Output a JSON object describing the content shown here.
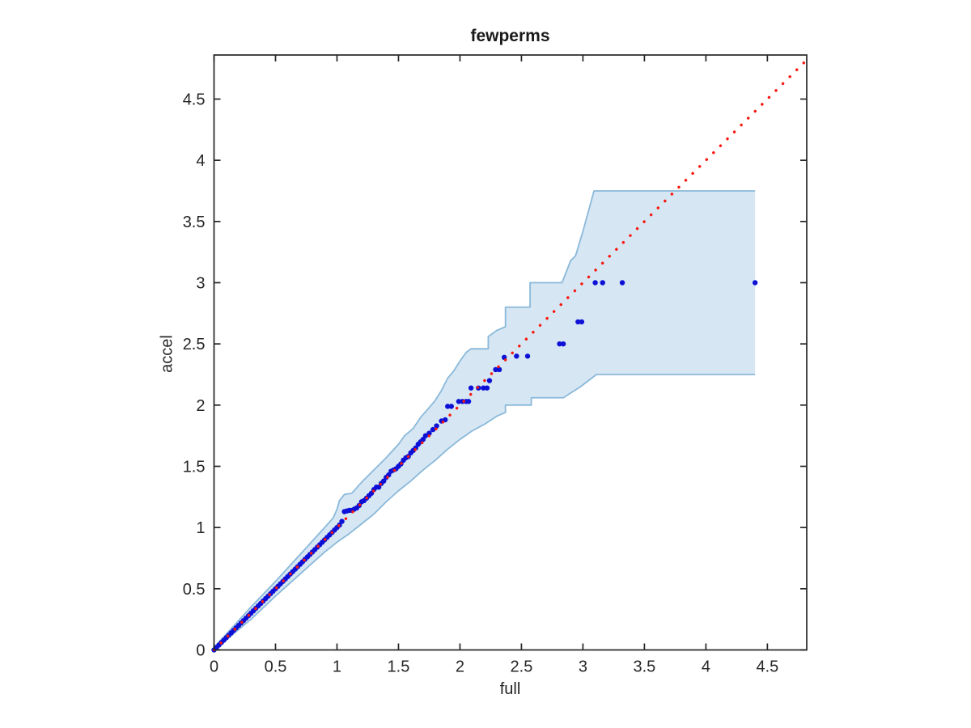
{
  "figure": {
    "title": "fewperms"
  },
  "chart_data": {
    "type": "scatter",
    "title": "fewperms",
    "xlabel": "full",
    "ylabel": "accel",
    "xlim": [
      0,
      4.82
    ],
    "ylim": [
      0,
      4.86
    ],
    "xticks": [
      0,
      0.5,
      1,
      1.5,
      2,
      2.5,
      3,
      3.5,
      4,
      4.5
    ],
    "xtick_labels": [
      "0",
      "0.5",
      "1",
      "1.5",
      "2",
      "2.5",
      "3",
      "3.5",
      "4",
      "4.5"
    ],
    "yticks": [
      0,
      0.5,
      1,
      1.5,
      2,
      2.5,
      3,
      3.5,
      4,
      4.5
    ],
    "ytick_labels": [
      "0",
      "0.5",
      "1",
      "1.5",
      "2",
      "2.5",
      "3",
      "3.5",
      "4",
      "4.5"
    ],
    "grid": false,
    "legend": null,
    "colors": {
      "background": "#ffffff",
      "axis": "#262626",
      "band_fill": "#d6e6f3",
      "band_edge": "#8ab9da",
      "marker": "#0d11d6",
      "ref_line": "#f8170e"
    },
    "ref_line": {
      "style": "dotted",
      "from": [
        0,
        0
      ],
      "to": [
        4.82,
        4.82
      ]
    },
    "band": {
      "upper": [
        [
          0,
          0.02
        ],
        [
          0.3,
          0.35
        ],
        [
          0.5,
          0.56
        ],
        [
          0.7,
          0.78
        ],
        [
          0.9,
          1.0
        ],
        [
          0.97,
          1.08
        ],
        [
          1.0,
          1.15
        ],
        [
          1.02,
          1.22
        ],
        [
          1.06,
          1.27
        ],
        [
          1.12,
          1.28
        ],
        [
          1.2,
          1.37
        ],
        [
          1.3,
          1.47
        ],
        [
          1.4,
          1.57
        ],
        [
          1.5,
          1.68
        ],
        [
          1.55,
          1.75
        ],
        [
          1.62,
          1.81
        ],
        [
          1.68,
          1.9
        ],
        [
          1.75,
          1.98
        ],
        [
          1.8,
          2.04
        ],
        [
          1.85,
          2.12
        ],
        [
          1.9,
          2.22
        ],
        [
          1.95,
          2.28
        ],
        [
          2.0,
          2.36
        ],
        [
          2.05,
          2.43
        ],
        [
          2.09,
          2.46
        ],
        [
          2.23,
          2.46
        ],
        [
          2.23,
          2.56
        ],
        [
          2.3,
          2.61
        ],
        [
          2.37,
          2.64
        ],
        [
          2.37,
          2.8
        ],
        [
          2.57,
          2.8
        ],
        [
          2.57,
          3.0
        ],
        [
          2.83,
          3.0
        ],
        [
          2.9,
          3.18
        ],
        [
          2.94,
          3.22
        ],
        [
          3.0,
          3.42
        ],
        [
          3.09,
          3.75
        ],
        [
          4.4,
          3.75
        ]
      ],
      "lower": [
        [
          0,
          0
        ],
        [
          0.3,
          0.25
        ],
        [
          0.5,
          0.44
        ],
        [
          0.7,
          0.62
        ],
        [
          0.9,
          0.8
        ],
        [
          1.0,
          0.88
        ],
        [
          1.1,
          0.95
        ],
        [
          1.2,
          1.03
        ],
        [
          1.3,
          1.11
        ],
        [
          1.4,
          1.21
        ],
        [
          1.5,
          1.3
        ],
        [
          1.6,
          1.38
        ],
        [
          1.7,
          1.47
        ],
        [
          1.8,
          1.55
        ],
        [
          1.9,
          1.64
        ],
        [
          2.0,
          1.72
        ],
        [
          2.1,
          1.79
        ],
        [
          2.21,
          1.85
        ],
        [
          2.3,
          1.91
        ],
        [
          2.37,
          1.94
        ],
        [
          2.37,
          2.0
        ],
        [
          2.58,
          2.0
        ],
        [
          2.58,
          2.06
        ],
        [
          2.84,
          2.06
        ],
        [
          2.98,
          2.15
        ],
        [
          3.11,
          2.25
        ],
        [
          4.4,
          2.25
        ]
      ]
    },
    "marker": {
      "radius": 3.2
    },
    "points": [
      [
        0,
        0
      ],
      [
        0.02,
        0.02
      ],
      [
        0.04,
        0.04
      ],
      [
        0.06,
        0.06
      ],
      [
        0.08,
        0.08
      ],
      [
        0.1,
        0.1
      ],
      [
        0.12,
        0.12
      ],
      [
        0.14,
        0.14
      ],
      [
        0.16,
        0.16
      ],
      [
        0.18,
        0.18
      ],
      [
        0.2,
        0.2
      ],
      [
        0.22,
        0.22
      ],
      [
        0.24,
        0.24
      ],
      [
        0.26,
        0.26
      ],
      [
        0.28,
        0.28
      ],
      [
        0.3,
        0.3
      ],
      [
        0.32,
        0.32
      ],
      [
        0.34,
        0.34
      ],
      [
        0.36,
        0.36
      ],
      [
        0.38,
        0.38
      ],
      [
        0.4,
        0.4
      ],
      [
        0.42,
        0.42
      ],
      [
        0.44,
        0.44
      ],
      [
        0.46,
        0.46
      ],
      [
        0.48,
        0.48
      ],
      [
        0.5,
        0.5
      ],
      [
        0.52,
        0.52
      ],
      [
        0.54,
        0.54
      ],
      [
        0.56,
        0.56
      ],
      [
        0.58,
        0.58
      ],
      [
        0.6,
        0.6
      ],
      [
        0.62,
        0.62
      ],
      [
        0.64,
        0.64
      ],
      [
        0.66,
        0.66
      ],
      [
        0.68,
        0.68
      ],
      [
        0.7,
        0.7
      ],
      [
        0.72,
        0.72
      ],
      [
        0.74,
        0.74
      ],
      [
        0.76,
        0.76
      ],
      [
        0.78,
        0.78
      ],
      [
        0.8,
        0.8
      ],
      [
        0.82,
        0.82
      ],
      [
        0.84,
        0.84
      ],
      [
        0.86,
        0.86
      ],
      [
        0.88,
        0.88
      ],
      [
        0.9,
        0.9
      ],
      [
        0.92,
        0.92
      ],
      [
        0.94,
        0.94
      ],
      [
        0.96,
        0.96
      ],
      [
        0.98,
        0.98
      ],
      [
        1.0,
        1.0
      ],
      [
        1.02,
        1.02
      ],
      [
        1.04,
        1.05
      ],
      [
        1.06,
        1.13
      ],
      [
        1.08,
        1.135
      ],
      [
        1.1,
        1.14
      ],
      [
        1.12,
        1.14
      ],
      [
        1.14,
        1.15
      ],
      [
        1.16,
        1.16
      ],
      [
        1.18,
        1.18
      ],
      [
        1.2,
        1.21
      ],
      [
        1.22,
        1.22
      ],
      [
        1.24,
        1.24
      ],
      [
        1.26,
        1.26
      ],
      [
        1.28,
        1.28
      ],
      [
        1.3,
        1.31
      ],
      [
        1.32,
        1.33
      ],
      [
        1.34,
        1.33
      ],
      [
        1.36,
        1.36
      ],
      [
        1.38,
        1.38
      ],
      [
        1.4,
        1.41
      ],
      [
        1.42,
        1.43
      ],
      [
        1.44,
        1.46
      ],
      [
        1.46,
        1.47
      ],
      [
        1.48,
        1.48
      ],
      [
        1.5,
        1.5
      ],
      [
        1.52,
        1.52
      ],
      [
        1.54,
        1.55
      ],
      [
        1.56,
        1.57
      ],
      [
        1.58,
        1.58
      ],
      [
        1.6,
        1.61
      ],
      [
        1.62,
        1.63
      ],
      [
        1.64,
        1.65
      ],
      [
        1.66,
        1.68
      ],
      [
        1.68,
        1.7
      ],
      [
        1.7,
        1.72
      ],
      [
        1.72,
        1.75
      ],
      [
        1.75,
        1.77
      ],
      [
        1.78,
        1.8
      ],
      [
        1.81,
        1.83
      ],
      [
        1.85,
        1.87
      ],
      [
        1.88,
        1.88
      ],
      [
        1.9,
        1.99
      ],
      [
        1.93,
        1.99
      ],
      [
        1.99,
        2.03
      ],
      [
        2.02,
        2.03
      ],
      [
        2.05,
        2.03
      ],
      [
        2.07,
        2.03
      ],
      [
        2.09,
        2.14
      ],
      [
        2.15,
        2.14
      ],
      [
        2.19,
        2.14
      ],
      [
        2.22,
        2.14
      ],
      [
        2.24,
        2.2
      ],
      [
        2.29,
        2.29
      ],
      [
        2.32,
        2.29
      ],
      [
        2.36,
        2.39
      ],
      [
        2.46,
        2.4
      ],
      [
        2.55,
        2.4
      ],
      [
        2.81,
        2.5
      ],
      [
        2.84,
        2.5
      ],
      [
        2.96,
        2.68
      ],
      [
        2.99,
        2.68
      ],
      [
        3.1,
        3.0
      ],
      [
        3.16,
        3.0
      ],
      [
        3.32,
        3.0
      ],
      [
        4.4,
        3.0
      ]
    ]
  }
}
